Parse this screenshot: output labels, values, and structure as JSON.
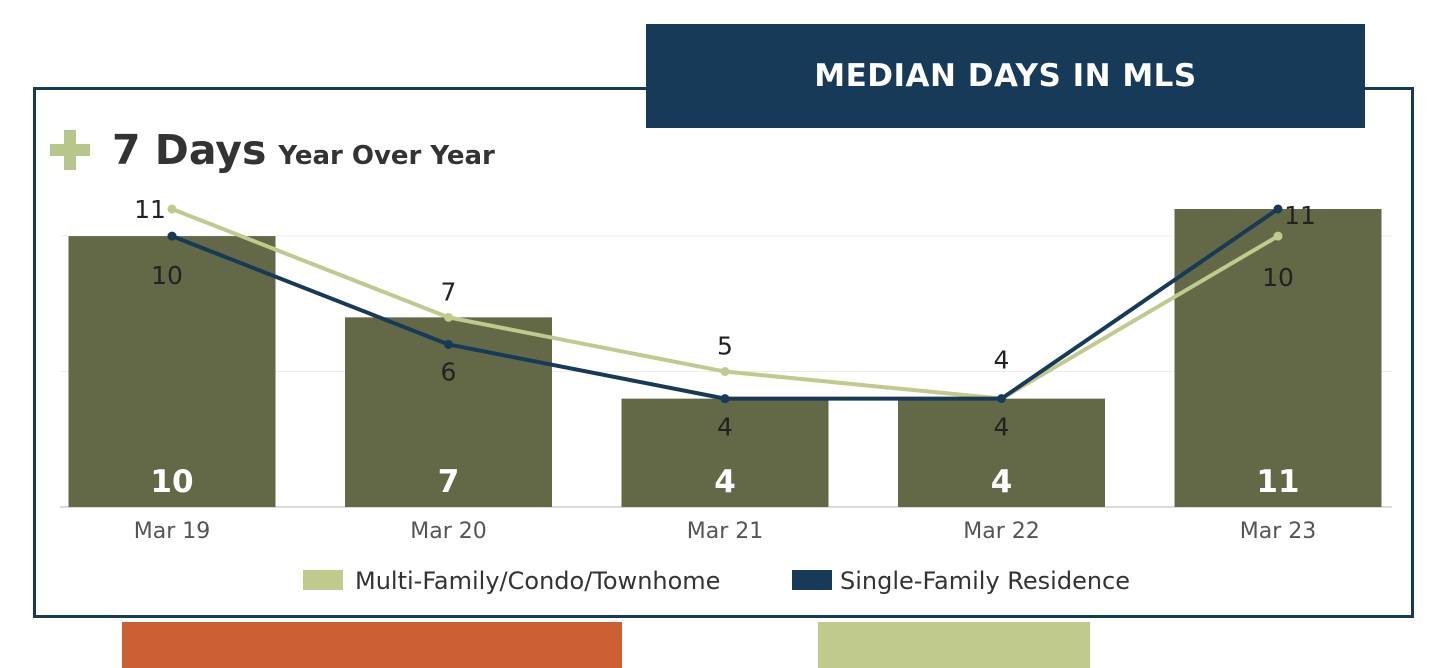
{
  "title": "MEDIAN DAYS IN MLS",
  "headline": {
    "icon": "plus-icon",
    "value": "7 Days",
    "caption": "Year Over Year"
  },
  "colors": {
    "banner": "#173a58",
    "bars": "#636847",
    "multi_family": "#bfca8c",
    "single_family": "#173a58",
    "plus": "#b7c68b"
  },
  "chart_data": {
    "type": "bar",
    "categories": [
      "Mar 19",
      "Mar 20",
      "Mar 21",
      "Mar 22",
      "Mar 23"
    ],
    "series": [
      {
        "name": "",
        "type": "bar",
        "values": [
          10,
          7,
          4,
          4,
          11
        ],
        "color": "#636847"
      },
      {
        "name": "Multi-Family/Condo/Townhome",
        "type": "line",
        "values": [
          11,
          7,
          5,
          4,
          10
        ],
        "color": "#bfca8c"
      },
      {
        "name": "Single-Family Residence",
        "type": "line",
        "values": [
          10,
          6,
          4,
          4,
          11
        ],
        "color": "#173a58"
      }
    ],
    "ylim": [
      0,
      11
    ],
    "legend_position": "bottom",
    "grid": true
  }
}
